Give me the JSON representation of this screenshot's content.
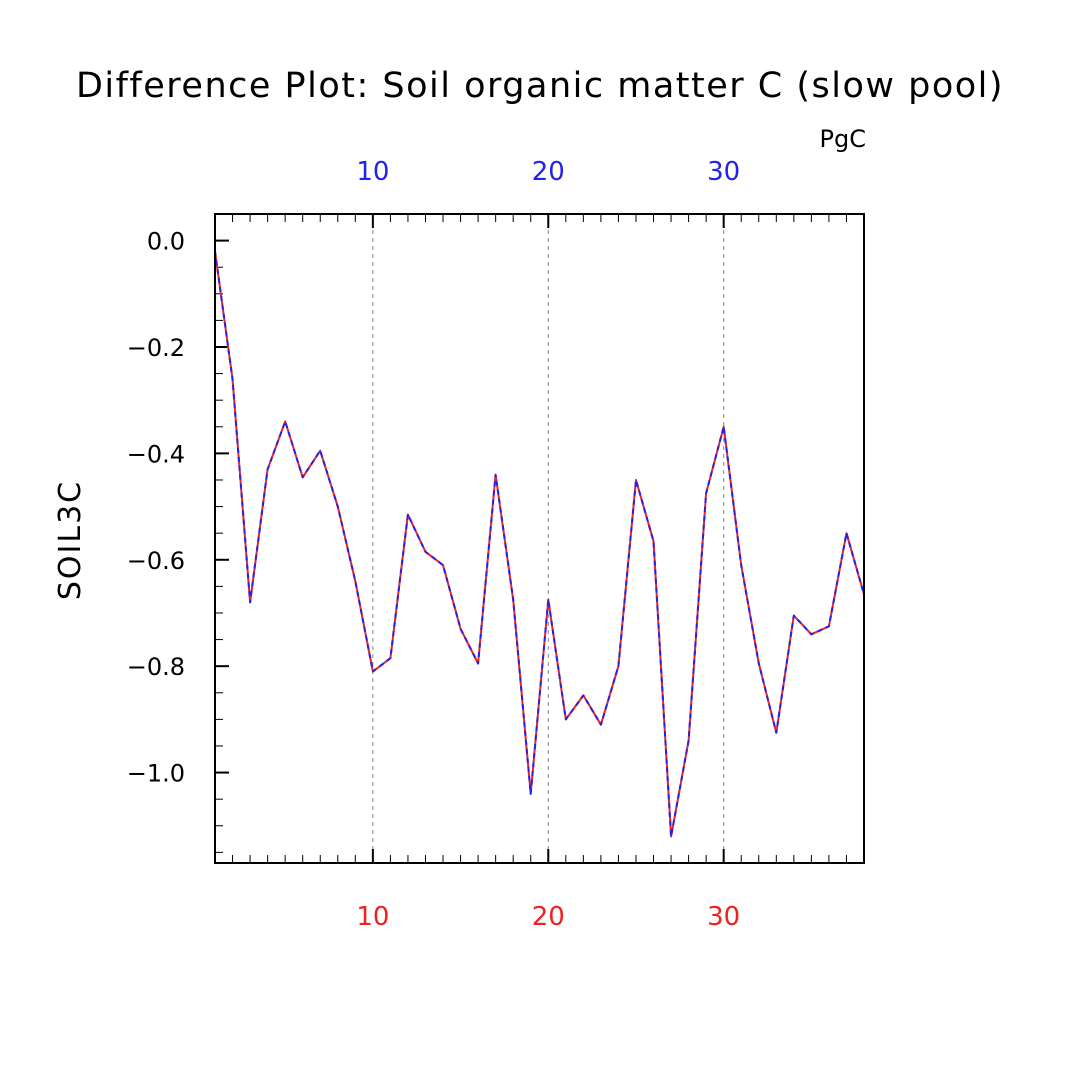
{
  "chart_data": {
    "type": "line",
    "title": "Difference Plot: Soil organic matter C (slow pool)",
    "units": "PgC",
    "ylabel": "SOIL3C",
    "xlim": [
      1,
      38
    ],
    "ylim": [
      -1.17,
      0.05
    ],
    "yticks": [
      0.0,
      -0.2,
      -0.4,
      -0.6,
      -0.8,
      -1.0
    ],
    "ytick_labels": [
      "0.0",
      "−0.2",
      "−0.4",
      "−0.6",
      "−0.8",
      "−1.0"
    ],
    "xticks_top": [
      10,
      20,
      30
    ],
    "xticks_bottom": [
      10,
      20,
      30
    ],
    "grid": "vertical dashed at x = 10, 20, 30",
    "top_axis_color": "#2222ee",
    "bottom_axis_color": "#ee2222",
    "series": [
      {
        "color": "#ee2222",
        "style": "solid",
        "x": [
          1,
          2,
          3,
          4,
          5,
          6,
          7,
          8,
          9,
          10,
          11,
          12,
          13,
          14,
          15,
          16,
          17,
          18,
          19,
          20,
          21,
          22,
          23,
          24,
          25,
          26,
          27,
          28,
          29,
          30,
          31,
          32,
          33,
          34,
          35,
          36,
          37,
          38
        ],
        "y": [
          -0.02,
          -0.26,
          -0.68,
          -0.43,
          -0.34,
          -0.445,
          -0.395,
          -0.5,
          -0.64,
          -0.81,
          -0.785,
          -0.515,
          -0.585,
          -0.61,
          -0.73,
          -0.795,
          -0.44,
          -0.675,
          -1.04,
          -0.675,
          -0.9,
          -0.855,
          -0.91,
          -0.8,
          -0.45,
          -0.565,
          -1.12,
          -0.94,
          -0.475,
          -0.35,
          -0.61,
          -0.795,
          -0.925,
          -0.705,
          -0.74,
          -0.725,
          -0.55,
          -0.665
        ]
      },
      {
        "color": "#2222ee",
        "style": "dashed",
        "x": [
          1,
          2,
          3,
          4,
          5,
          6,
          7,
          8,
          9,
          10,
          11,
          12,
          13,
          14,
          15,
          16,
          17,
          18,
          19,
          20,
          21,
          22,
          23,
          24,
          25,
          26,
          27,
          28,
          29,
          30,
          31,
          32,
          33,
          34,
          35,
          36,
          37,
          38
        ],
        "y": [
          -0.02,
          -0.26,
          -0.68,
          -0.43,
          -0.34,
          -0.445,
          -0.395,
          -0.5,
          -0.64,
          -0.81,
          -0.785,
          -0.515,
          -0.585,
          -0.61,
          -0.73,
          -0.795,
          -0.44,
          -0.675,
          -1.04,
          -0.675,
          -0.9,
          -0.855,
          -0.91,
          -0.8,
          -0.45,
          -0.565,
          -1.12,
          -0.94,
          -0.475,
          -0.35,
          -0.61,
          -0.795,
          -0.925,
          -0.705,
          -0.74,
          -0.725,
          -0.55,
          -0.665
        ]
      }
    ]
  }
}
